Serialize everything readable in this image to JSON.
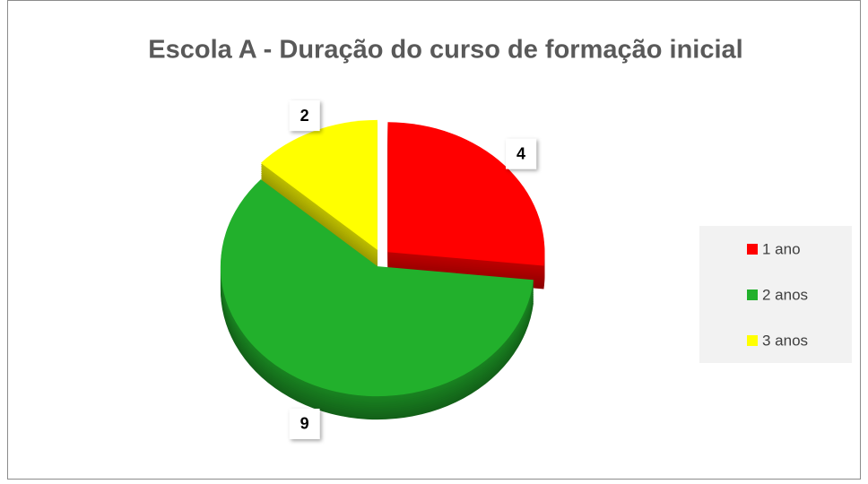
{
  "chart_data": {
    "type": "pie",
    "title": "Escola A - Duração do curso de formação inicial",
    "categories": [
      "1 ano",
      "2 anos",
      "3 anos"
    ],
    "values": [
      4,
      9,
      2
    ],
    "colors": [
      "#ff0000",
      "#22b02c",
      "#ffff00"
    ],
    "legend": "right"
  }
}
